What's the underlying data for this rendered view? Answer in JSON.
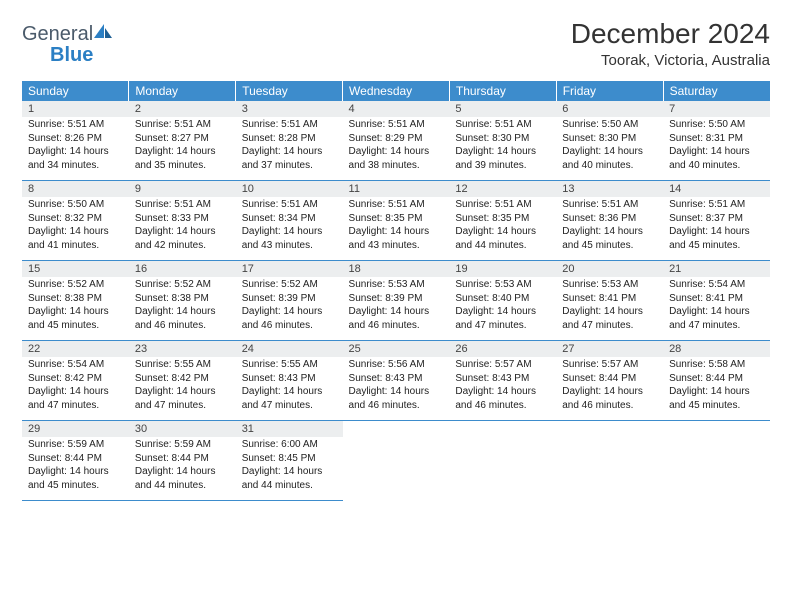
{
  "logo": {
    "text1": "General",
    "text2": "Blue"
  },
  "title": "December 2024",
  "location": "Toorak, Victoria, Australia",
  "header_bg": "#3d8ccc",
  "daynum_bg": "#eceeef",
  "weekdays": [
    "Sunday",
    "Monday",
    "Tuesday",
    "Wednesday",
    "Thursday",
    "Friday",
    "Saturday"
  ],
  "weeks": [
    [
      {
        "n": "1",
        "sr": "5:51 AM",
        "ss": "8:26 PM",
        "dh": "14",
        "dm": "34"
      },
      {
        "n": "2",
        "sr": "5:51 AM",
        "ss": "8:27 PM",
        "dh": "14",
        "dm": "35"
      },
      {
        "n": "3",
        "sr": "5:51 AM",
        "ss": "8:28 PM",
        "dh": "14",
        "dm": "37"
      },
      {
        "n": "4",
        "sr": "5:51 AM",
        "ss": "8:29 PM",
        "dh": "14",
        "dm": "38"
      },
      {
        "n": "5",
        "sr": "5:51 AM",
        "ss": "8:30 PM",
        "dh": "14",
        "dm": "39"
      },
      {
        "n": "6",
        "sr": "5:50 AM",
        "ss": "8:30 PM",
        "dh": "14",
        "dm": "40"
      },
      {
        "n": "7",
        "sr": "5:50 AM",
        "ss": "8:31 PM",
        "dh": "14",
        "dm": "40"
      }
    ],
    [
      {
        "n": "8",
        "sr": "5:50 AM",
        "ss": "8:32 PM",
        "dh": "14",
        "dm": "41"
      },
      {
        "n": "9",
        "sr": "5:51 AM",
        "ss": "8:33 PM",
        "dh": "14",
        "dm": "42"
      },
      {
        "n": "10",
        "sr": "5:51 AM",
        "ss": "8:34 PM",
        "dh": "14",
        "dm": "43"
      },
      {
        "n": "11",
        "sr": "5:51 AM",
        "ss": "8:35 PM",
        "dh": "14",
        "dm": "43"
      },
      {
        "n": "12",
        "sr": "5:51 AM",
        "ss": "8:35 PM",
        "dh": "14",
        "dm": "44"
      },
      {
        "n": "13",
        "sr": "5:51 AM",
        "ss": "8:36 PM",
        "dh": "14",
        "dm": "45"
      },
      {
        "n": "14",
        "sr": "5:51 AM",
        "ss": "8:37 PM",
        "dh": "14",
        "dm": "45"
      }
    ],
    [
      {
        "n": "15",
        "sr": "5:52 AM",
        "ss": "8:38 PM",
        "dh": "14",
        "dm": "45"
      },
      {
        "n": "16",
        "sr": "5:52 AM",
        "ss": "8:38 PM",
        "dh": "14",
        "dm": "46"
      },
      {
        "n": "17",
        "sr": "5:52 AM",
        "ss": "8:39 PM",
        "dh": "14",
        "dm": "46"
      },
      {
        "n": "18",
        "sr": "5:53 AM",
        "ss": "8:39 PM",
        "dh": "14",
        "dm": "46"
      },
      {
        "n": "19",
        "sr": "5:53 AM",
        "ss": "8:40 PM",
        "dh": "14",
        "dm": "47"
      },
      {
        "n": "20",
        "sr": "5:53 AM",
        "ss": "8:41 PM",
        "dh": "14",
        "dm": "47"
      },
      {
        "n": "21",
        "sr": "5:54 AM",
        "ss": "8:41 PM",
        "dh": "14",
        "dm": "47"
      }
    ],
    [
      {
        "n": "22",
        "sr": "5:54 AM",
        "ss": "8:42 PM",
        "dh": "14",
        "dm": "47"
      },
      {
        "n": "23",
        "sr": "5:55 AM",
        "ss": "8:42 PM",
        "dh": "14",
        "dm": "47"
      },
      {
        "n": "24",
        "sr": "5:55 AM",
        "ss": "8:43 PM",
        "dh": "14",
        "dm": "47"
      },
      {
        "n": "25",
        "sr": "5:56 AM",
        "ss": "8:43 PM",
        "dh": "14",
        "dm": "46"
      },
      {
        "n": "26",
        "sr": "5:57 AM",
        "ss": "8:43 PM",
        "dh": "14",
        "dm": "46"
      },
      {
        "n": "27",
        "sr": "5:57 AM",
        "ss": "8:44 PM",
        "dh": "14",
        "dm": "46"
      },
      {
        "n": "28",
        "sr": "5:58 AM",
        "ss": "8:44 PM",
        "dh": "14",
        "dm": "45"
      }
    ],
    [
      {
        "n": "29",
        "sr": "5:59 AM",
        "ss": "8:44 PM",
        "dh": "14",
        "dm": "45"
      },
      {
        "n": "30",
        "sr": "5:59 AM",
        "ss": "8:44 PM",
        "dh": "14",
        "dm": "44"
      },
      {
        "n": "31",
        "sr": "6:00 AM",
        "ss": "8:45 PM",
        "dh": "14",
        "dm": "44"
      },
      null,
      null,
      null,
      null
    ]
  ]
}
